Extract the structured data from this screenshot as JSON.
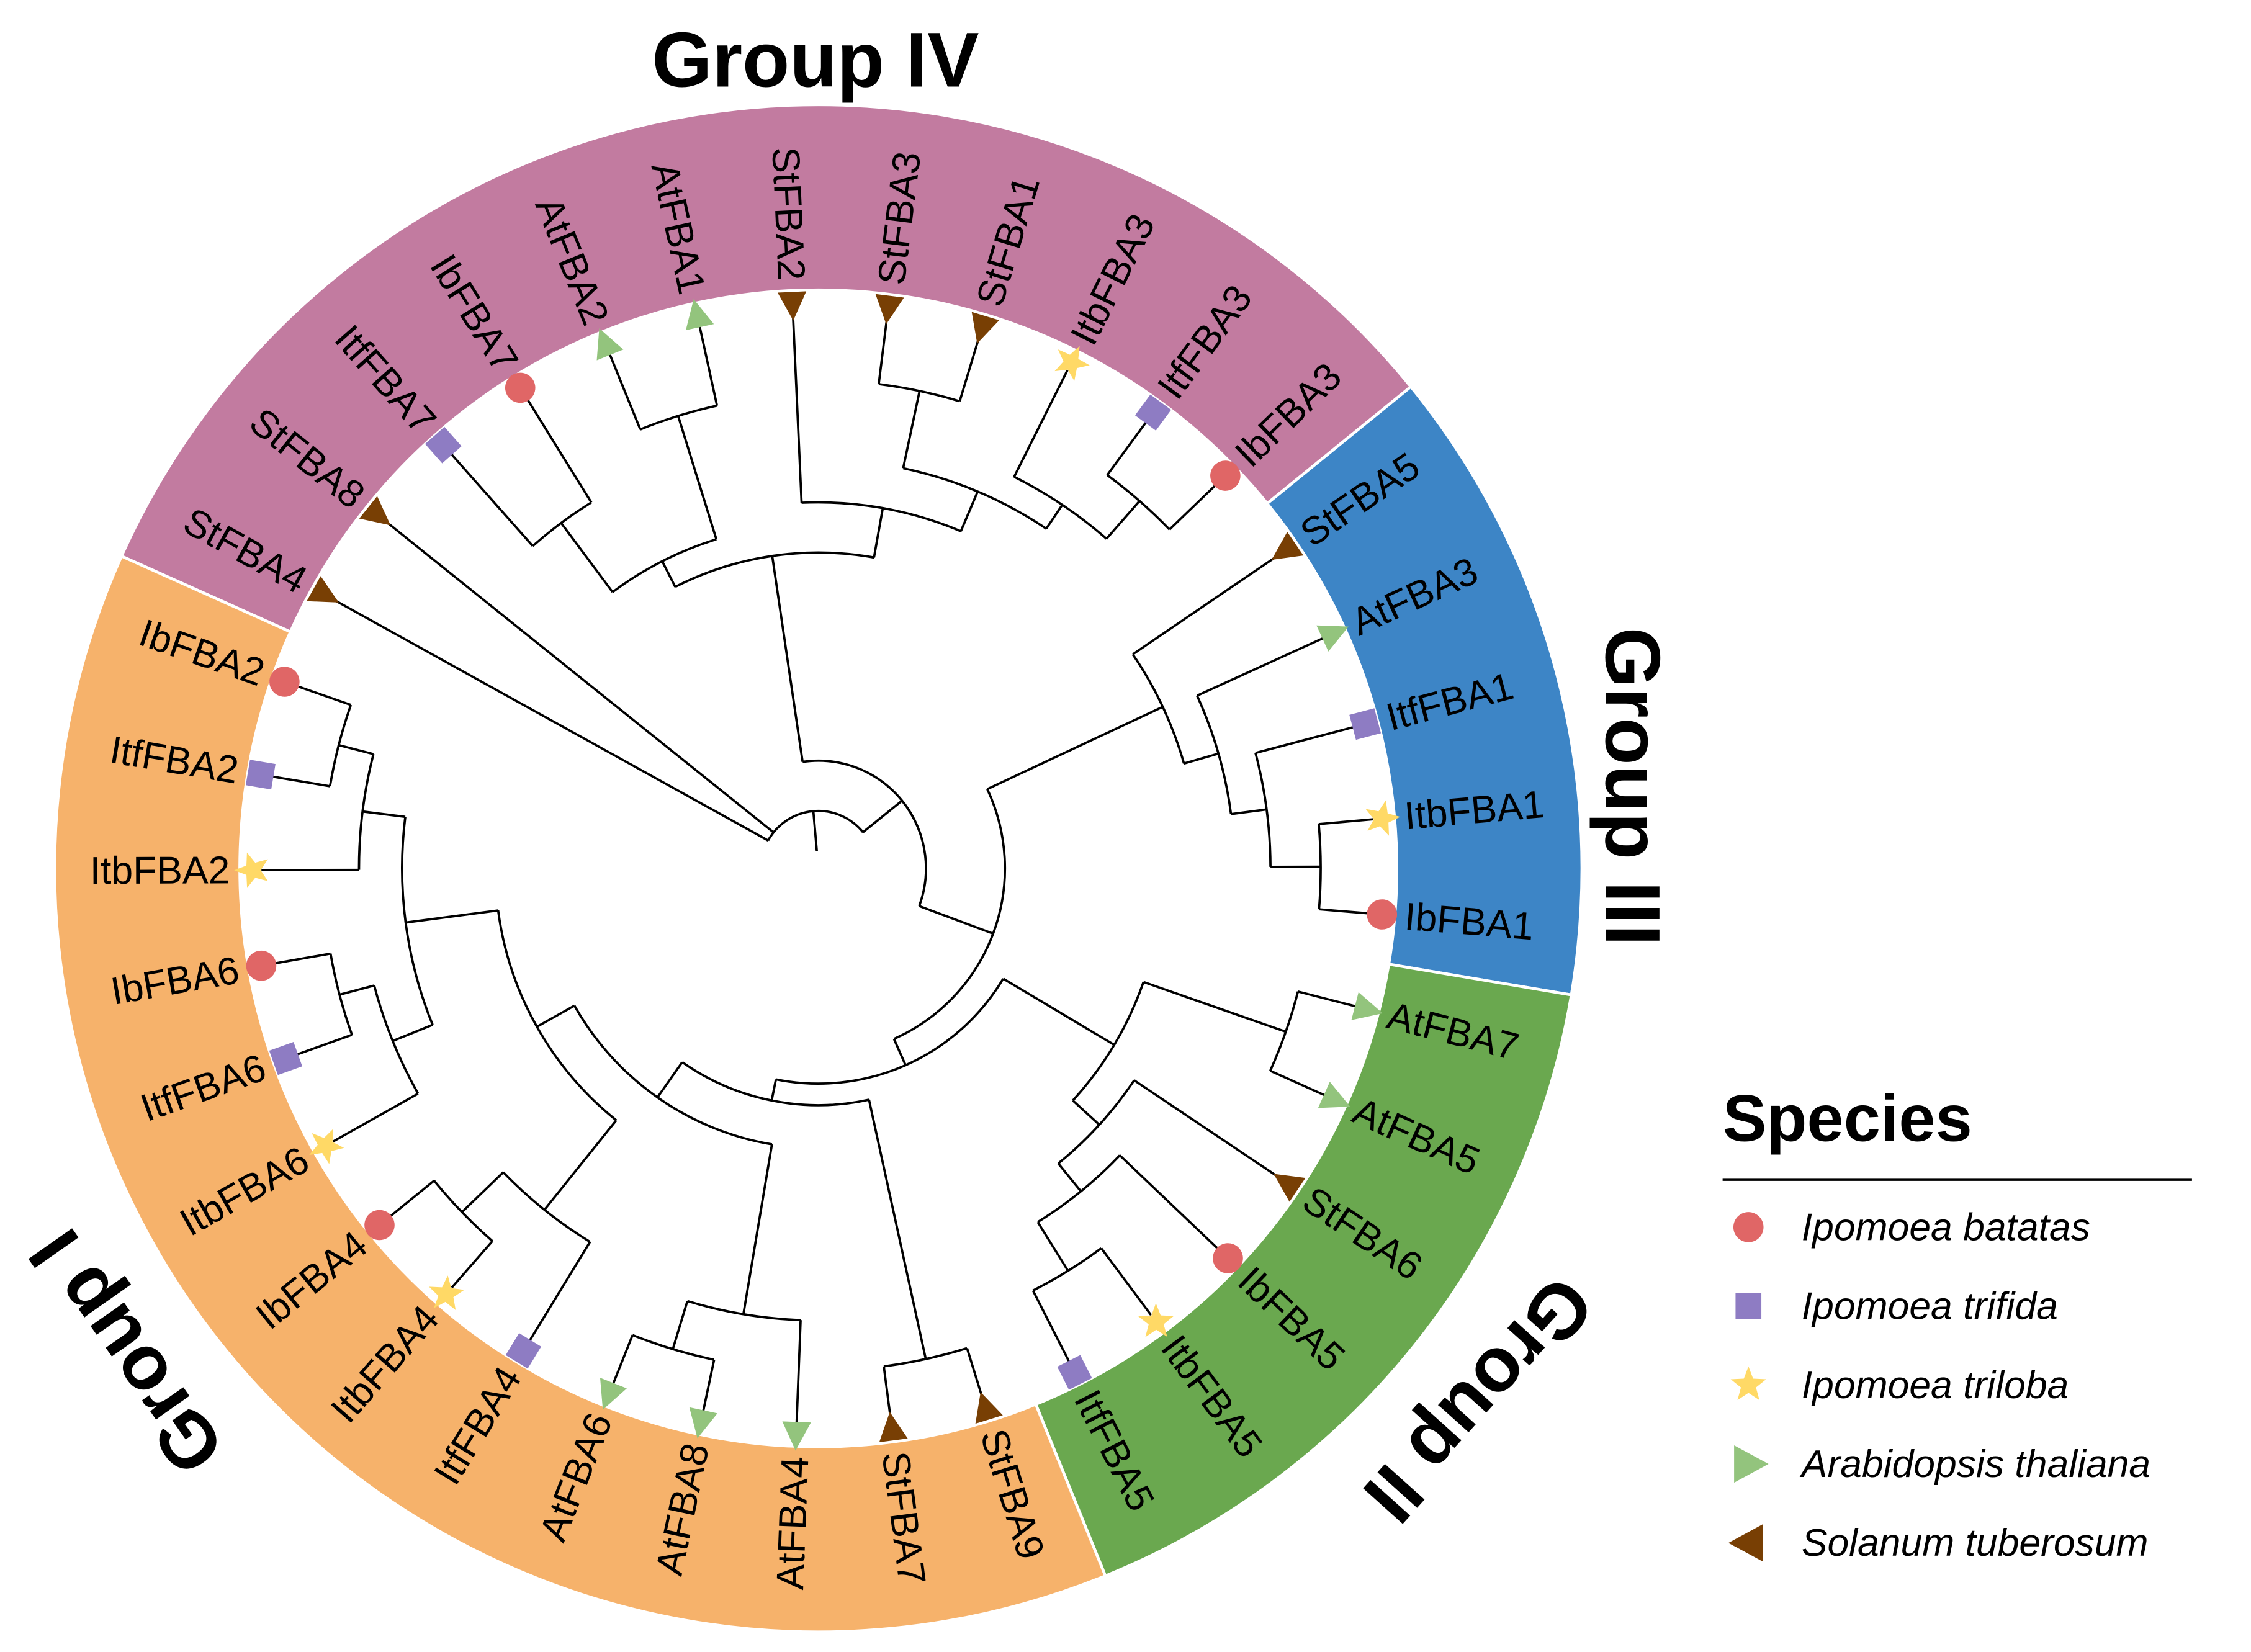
{
  "groups": [
    {
      "name": "Group IV",
      "color": "#c27ba0",
      "first": "StFBA4",
      "last": "IbFBA3"
    },
    {
      "name": "Group III",
      "color": "#3d85c6",
      "first": "StFBA5",
      "last": "IbFBA1"
    },
    {
      "name": "Group II",
      "color": "#6aa84f",
      "first": "AtFBA7",
      "last": "ItfFBA5"
    },
    {
      "name": "Group I",
      "color": "#f6b26b",
      "first": "StFBA9",
      "last": "IbFBA2"
    }
  ],
  "legend": {
    "title": "Species",
    "items": [
      {
        "key": "batatas",
        "label": "Ipomoea batatas",
        "shape": "circle",
        "color": "#e06666"
      },
      {
        "key": "trifida",
        "label": "Ipomoea trifida",
        "shape": "square",
        "color": "#8e7cc3"
      },
      {
        "key": "triloba",
        "label": "Ipomoea triloba",
        "shape": "star",
        "color": "#ffd966"
      },
      {
        "key": "thaliana",
        "label": "Arabidopsis thaliana",
        "shape": "triangle-right",
        "color": "#93c47d"
      },
      {
        "key": "tuberosum",
        "label": "Solanum tuberosum",
        "shape": "triangle-left",
        "color": "#783f04"
      }
    ]
  },
  "leaves": [
    {
      "name": "StFBA4",
      "species": "tuberosum"
    },
    {
      "name": "StFBA8",
      "species": "tuberosum"
    },
    {
      "name": "ItfFBA7",
      "species": "trifida"
    },
    {
      "name": "IbFBA7",
      "species": "batatas"
    },
    {
      "name": "AtFBA2",
      "species": "thaliana"
    },
    {
      "name": "AtFBA1",
      "species": "thaliana"
    },
    {
      "name": "StFBA2",
      "species": "tuberosum"
    },
    {
      "name": "StFBA3",
      "species": "tuberosum"
    },
    {
      "name": "StFBA1",
      "species": "tuberosum"
    },
    {
      "name": "ItbFBA3",
      "species": "triloba"
    },
    {
      "name": "ItfFBA3",
      "species": "trifida"
    },
    {
      "name": "IbFBA3",
      "species": "batatas"
    },
    {
      "name": "StFBA5",
      "species": "tuberosum"
    },
    {
      "name": "AtFBA3",
      "species": "thaliana"
    },
    {
      "name": "ItfFBA1",
      "species": "trifida"
    },
    {
      "name": "ItbFBA1",
      "species": "triloba"
    },
    {
      "name": "IbFBA1",
      "species": "batatas"
    },
    {
      "name": "AtFBA7",
      "species": "thaliana"
    },
    {
      "name": "AtFBA5",
      "species": "thaliana"
    },
    {
      "name": "StFBA6",
      "species": "tuberosum"
    },
    {
      "name": "IbFBA5",
      "species": "batatas"
    },
    {
      "name": "ItbFBA5",
      "species": "triloba"
    },
    {
      "name": "ItfFBA5",
      "species": "trifida"
    },
    {
      "name": "StFBA9",
      "species": "tuberosum"
    },
    {
      "name": "StFBA7",
      "species": "tuberosum"
    },
    {
      "name": "AtFBA4",
      "species": "thaliana"
    },
    {
      "name": "AtFBA8",
      "species": "thaliana"
    },
    {
      "name": "AtFBA6",
      "species": "thaliana"
    },
    {
      "name": "ItfFBA4",
      "species": "trifida"
    },
    {
      "name": "ItbFBA4",
      "species": "triloba"
    },
    {
      "name": "IbFBA4",
      "species": "batatas"
    },
    {
      "name": "ItbFBA6",
      "species": "triloba"
    },
    {
      "name": "ItfFBA6",
      "species": "trifida"
    },
    {
      "name": "IbFBA6",
      "species": "batatas"
    },
    {
      "name": "ItbFBA2",
      "species": "triloba"
    },
    {
      "name": "ItfFBA2",
      "species": "trifida"
    },
    {
      "name": "IbFBA2",
      "species": "batatas"
    }
  ],
  "tree": {
    "id": "root",
    "children": [
      "StFBA4",
      "StFBA8",
      {
        "id": "B",
        "children": [
          {
            "id": "C",
            "children": [
              {
                "id": "C1",
                "children": [
                  {
                    "id": "P",
                    "children": [
                      "ItfFBA7",
                      "IbFBA7"
                    ]
                  },
                  {
                    "id": "Q",
                    "children": [
                      "AtFBA2",
                      "AtFBA1"
                    ]
                  }
                ]
              },
              {
                "id": "G",
                "children": [
                  "StFBA2",
                  {
                    "id": "J",
                    "children": [
                      {
                        "id": "K",
                        "children": [
                          "StFBA3",
                          "StFBA1"
                        ]
                      },
                      {
                        "id": "M3",
                        "children": [
                          "ItbFBA3",
                          {
                            "id": "N3",
                            "children": [
                              "ItfFBA3",
                              "IbFBA3"
                            ]
                          }
                        ]
                      }
                    ]
                  }
                ]
              }
            ]
          },
          {
            "id": "E",
            "children": [
              {
                "id": "L",
                "children": [
                  "StFBA5",
                  {
                    "id": "M",
                    "children": [
                      "AtFBA3",
                      {
                        "id": "N",
                        "children": [
                          "ItfFBA1",
                          {
                            "id": "O",
                            "children": [
                              "ItbFBA1",
                              "IbFBA1"
                            ]
                          }
                        ]
                      }
                    ]
                  }
                ]
              },
              {
                "id": "F",
                "children": [
                  {
                    "id": "R2",
                    "children": [
                      {
                        "id": "S",
                        "children": [
                          "AtFBA7",
                          "AtFBA5"
                        ]
                      },
                      {
                        "id": "T2",
                        "children": [
                          "StFBA6",
                          {
                            "id": "U2",
                            "children": [
                              "IbFBA5",
                              {
                                "id": "V2",
                                "children": [
                                  "ItbFBA5",
                                  "ItfFBA5"
                                ]
                              }
                            ]
                          }
                        ]
                      }
                    ]
                  },
                  {
                    "id": "G1",
                    "children": [
                      {
                        "id": "ST79",
                        "children": [
                          "StFBA9",
                          "StFBA7"
                        ]
                      },
                      {
                        "id": "A3",
                        "children": [
                          {
                            "id": "AT",
                            "children": [
                              "AtFBA4",
                              {
                                "id": "AT2",
                                "children": [
                                  "AtFBA8",
                                  "AtFBA6"
                                ]
                              }
                            ]
                          },
                          {
                            "id": "A2",
                            "children": [
                              {
                                "id": "Q4",
                                "children": [
                                  "ItfFBA4",
                                  {
                                    "id": "R4",
                                    "children": [
                                      "ItbFBA4",
                                      "IbFBA4"
                                    ]
                                  }
                                ]
                              },
                              {
                                "id": "A1",
                                "children": [
                                  {
                                    "id": "S6",
                                    "children": [
                                      "ItbFBA6",
                                      {
                                        "id": "U6",
                                        "children": [
                                          "ItfFBA6",
                                          "IbFBA6"
                                        ]
                                      }
                                    ]
                                  },
                                  {
                                    "id": "S2",
                                    "children": [
                                      "ItbFBA2",
                                      {
                                        "id": "U2b",
                                        "children": [
                                          "ItfFBA2",
                                          "IbFBA2"
                                        ]
                                      }
                                    ]
                                  }
                                ]
                              }
                            ]
                          }
                        ]
                      }
                    ]
                  }
                ]
              }
            ]
          }
        ]
      }
    ]
  }
}
